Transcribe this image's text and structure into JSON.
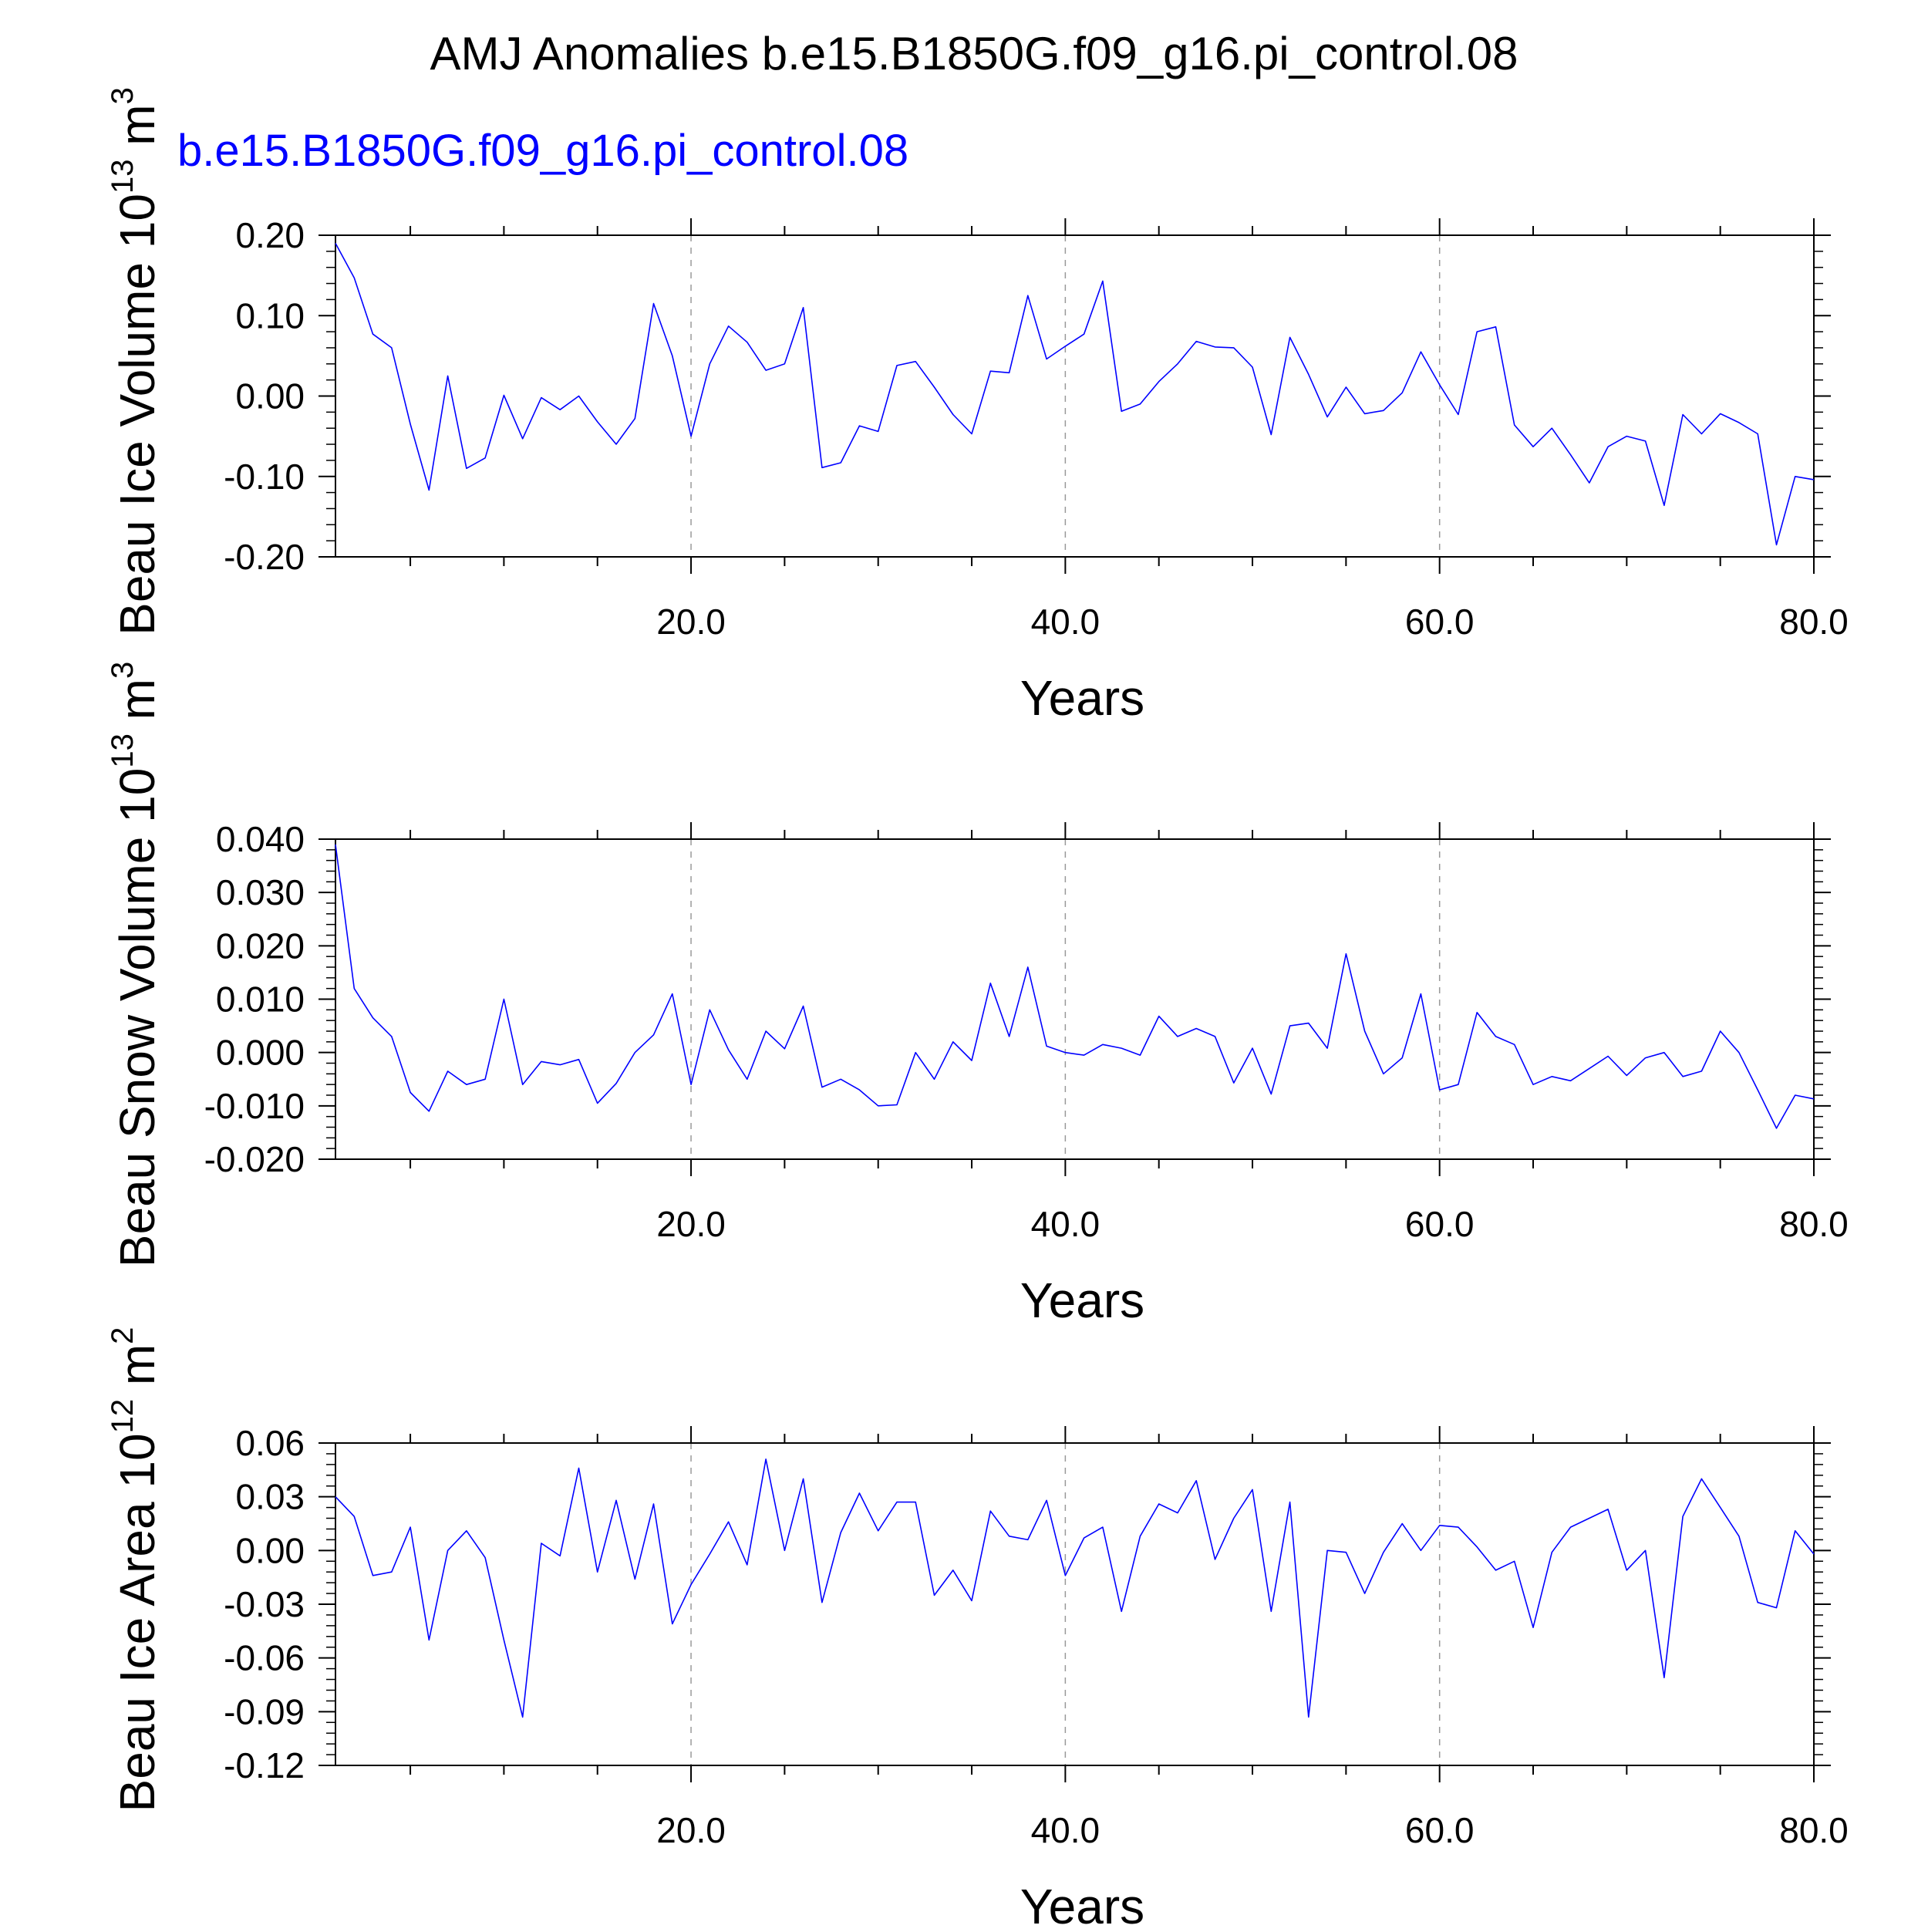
{
  "title": "AMJ Anomalies b.e15.B1850G.f09_g16.pi_control.08",
  "legend": {
    "label": "b.e15.B1850G.f09_g16.pi_control.08",
    "color": "#0000ff"
  },
  "chart_data": [
    {
      "type": "line",
      "ylabel": "Beau Ice Volume 10",
      "ylabel_exp": "13",
      "ylabel_unit": " m",
      "ylabel_unit_exp": "3",
      "xlabel": "Years",
      "xlim": [
        1,
        80
      ],
      "ylim": [
        -0.2,
        0.2
      ],
      "xticks": [
        "20.0",
        "40.0",
        "60.0",
        "80.0"
      ],
      "xtick_values": [
        20,
        40,
        60,
        80
      ],
      "yticks": [
        "0.20",
        "0.10",
        "0.00",
        "-0.10",
        "-0.20"
      ],
      "ytick_values": [
        0.2,
        0.1,
        0.0,
        -0.1,
        -0.2
      ],
      "grid": "dashed vertical at 20, 40, 60",
      "series": [
        {
          "color": "#0000ff",
          "x": [
            1,
            2,
            3,
            4,
            5,
            6,
            7,
            8,
            9,
            10,
            11,
            12,
            13,
            14,
            15,
            16,
            17,
            18,
            19,
            20,
            21,
            22,
            23,
            24,
            25,
            26,
            27,
            28,
            29,
            30,
            31,
            32,
            33,
            34,
            35,
            36,
            37,
            38,
            39,
            40,
            41,
            42,
            43,
            44,
            45,
            46,
            47,
            48,
            49,
            50,
            51,
            52,
            53,
            54,
            55,
            56,
            57,
            58,
            59,
            60,
            61,
            62,
            63,
            64,
            65,
            66,
            67,
            68,
            69,
            70,
            71,
            72,
            73,
            74,
            75,
            76,
            77,
            78,
            79,
            80
          ],
          "values": [
            0.19,
            0.147,
            0.077,
            0.06,
            -0.035,
            -0.117,
            0.025,
            -0.09,
            -0.077,
            0.001,
            -0.053,
            -0.002,
            -0.017,
            0.0,
            -0.032,
            -0.06,
            -0.028,
            0.115,
            0.05,
            -0.05,
            0.04,
            0.087,
            0.067,
            0.032,
            0.04,
            0.11,
            -0.089,
            -0.083,
            -0.037,
            -0.044,
            0.038,
            0.043,
            0.011,
            -0.023,
            -0.047,
            0.031,
            0.029,
            0.125,
            0.046,
            0.062,
            0.077,
            0.143,
            -0.019,
            -0.01,
            0.018,
            0.04,
            0.068,
            0.061,
            0.06,
            0.036,
            -0.048,
            0.073,
            0.027,
            -0.026,
            0.011,
            -0.022,
            -0.018,
            0.004,
            0.055,
            0.014,
            -0.023,
            0.08,
            0.086,
            -0.036,
            -0.063,
            -0.04,
            -0.073,
            -0.108,
            -0.063,
            -0.05,
            -0.056,
            -0.136,
            -0.023,
            -0.047,
            -0.022,
            -0.033,
            -0.047,
            -0.185,
            -0.1,
            -0.104
          ]
        }
      ]
    },
    {
      "type": "line",
      "ylabel": "Beau Snow Volume 10",
      "ylabel_exp": "13",
      "ylabel_unit": " m",
      "ylabel_unit_exp": "3",
      "xlabel": "Years",
      "xlim": [
        1,
        80
      ],
      "ylim": [
        -0.02,
        0.04
      ],
      "xticks": [
        "20.0",
        "40.0",
        "60.0",
        "80.0"
      ],
      "xtick_values": [
        20,
        40,
        60,
        80
      ],
      "yticks": [
        "0.040",
        "0.030",
        "0.020",
        "0.010",
        "0.000",
        "-0.010",
        "-0.020"
      ],
      "ytick_values": [
        0.04,
        0.03,
        0.02,
        0.01,
        0.0,
        -0.01,
        -0.02
      ],
      "grid": "dashed vertical at 20, 40, 60",
      "series": [
        {
          "color": "#0000ff",
          "x": [
            1,
            2,
            3,
            4,
            5,
            6,
            7,
            8,
            9,
            10,
            11,
            12,
            13,
            14,
            15,
            16,
            17,
            18,
            19,
            20,
            21,
            22,
            23,
            24,
            25,
            26,
            27,
            28,
            29,
            30,
            31,
            32,
            33,
            34,
            35,
            36,
            37,
            38,
            39,
            40,
            41,
            42,
            43,
            44,
            45,
            46,
            47,
            48,
            49,
            50,
            51,
            52,
            53,
            54,
            55,
            56,
            57,
            58,
            59,
            60,
            61,
            62,
            63,
            64,
            65,
            66,
            67,
            68,
            69,
            70,
            71,
            72,
            73,
            74,
            75,
            76,
            77,
            78,
            79,
            80
          ],
          "values": [
            0.039,
            0.012,
            0.0065,
            0.003,
            -0.0075,
            -0.011,
            -0.0035,
            -0.006,
            -0.005,
            0.01,
            -0.006,
            -0.0017,
            -0.0023,
            -0.0013,
            -0.0095,
            -0.0058,
            0.0,
            0.0033,
            0.011,
            -0.006,
            0.008,
            0.0005,
            -0.005,
            0.004,
            0.0007,
            0.0087,
            -0.0065,
            -0.005,
            -0.007,
            -0.01,
            -0.0098,
            0.0,
            -0.005,
            0.002,
            -0.0015,
            0.013,
            0.003,
            0.016,
            0.0012,
            0.0,
            -0.0005,
            0.0015,
            0.0008,
            -0.0005,
            0.0068,
            0.003,
            0.0045,
            0.003,
            -0.0057,
            0.0008,
            -0.0078,
            0.005,
            0.0055,
            0.0008,
            0.0185,
            0.004,
            -0.004,
            -0.001,
            0.011,
            -0.007,
            -0.006,
            0.0075,
            0.003,
            0.0015,
            -0.006,
            -0.0045,
            -0.0053,
            -0.003,
            -0.0007,
            -0.0043,
            -0.001,
            0.0,
            -0.0045,
            -0.0035,
            0.004,
            0.0,
            -0.007,
            -0.0142,
            -0.008,
            -0.0087
          ]
        }
      ]
    },
    {
      "type": "line",
      "ylabel": "Beau Ice Area 10",
      "ylabel_exp": "12",
      "ylabel_unit": " m",
      "ylabel_unit_exp": "2",
      "xlabel": "Years",
      "xlim": [
        1,
        80
      ],
      "ylim": [
        -0.12,
        0.06
      ],
      "xticks": [
        "20.0",
        "40.0",
        "60.0",
        "80.0"
      ],
      "xtick_values": [
        20,
        40,
        60,
        80
      ],
      "yticks": [
        "0.06",
        "0.03",
        "0.00",
        "-0.03",
        "-0.06",
        "-0.09",
        "-0.12"
      ],
      "ytick_values": [
        0.06,
        0.03,
        0.0,
        -0.03,
        -0.06,
        -0.09,
        -0.12
      ],
      "grid": "dashed vertical at 20, 40, 60",
      "series": [
        {
          "color": "#0000ff",
          "x": [
            1,
            2,
            3,
            4,
            5,
            6,
            7,
            8,
            9,
            10,
            11,
            12,
            13,
            14,
            15,
            16,
            17,
            18,
            19,
            20,
            21,
            22,
            23,
            24,
            25,
            26,
            27,
            28,
            29,
            30,
            31,
            32,
            33,
            34,
            35,
            36,
            37,
            38,
            39,
            40,
            41,
            42,
            43,
            44,
            45,
            46,
            47,
            48,
            49,
            50,
            51,
            52,
            53,
            54,
            55,
            56,
            57,
            58,
            59,
            60,
            61,
            62,
            63,
            64,
            65,
            66,
            67,
            68,
            69,
            70,
            71,
            72,
            73,
            74,
            75,
            76,
            77,
            78,
            79,
            80
          ],
          "values": [
            0.03,
            0.019,
            -0.014,
            -0.012,
            0.013,
            -0.05,
            0.0,
            0.011,
            -0.004,
            -0.05,
            -0.093,
            0.004,
            -0.003,
            0.046,
            -0.012,
            0.028,
            -0.016,
            0.026,
            -0.041,
            -0.019,
            -0.002,
            0.016,
            -0.008,
            0.051,
            0.0,
            0.04,
            -0.029,
            0.01,
            0.032,
            0.011,
            0.027,
            0.027,
            -0.025,
            -0.011,
            -0.028,
            0.022,
            0.008,
            0.006,
            0.028,
            -0.014,
            0.007,
            0.013,
            -0.034,
            0.008,
            0.026,
            0.021,
            0.039,
            -0.005,
            0.018,
            0.034,
            -0.034,
            0.027,
            -0.093,
            0.0,
            -0.001,
            -0.024,
            -0.001,
            0.015,
            0.0,
            0.014,
            0.013,
            0.002,
            -0.011,
            -0.006,
            -0.043,
            -0.001,
            0.013,
            0.018,
            0.023,
            -0.011,
            0.0,
            -0.071,
            0.019,
            0.04,
            0.024,
            0.008,
            -0.029,
            -0.032,
            0.011,
            -0.002
          ]
        }
      ]
    }
  ]
}
